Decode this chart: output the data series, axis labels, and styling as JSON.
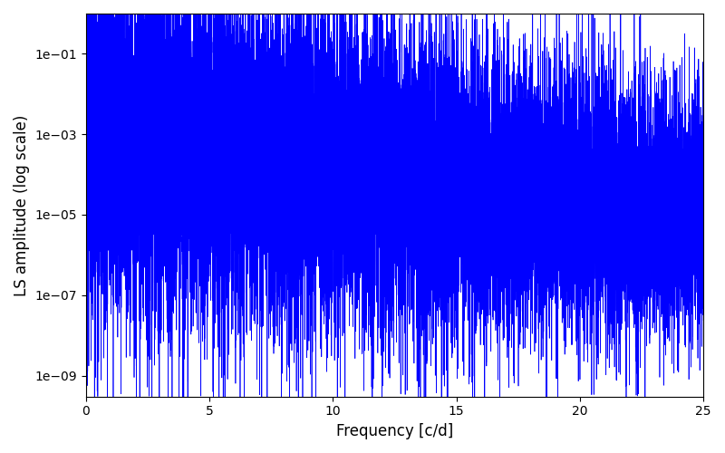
{
  "title": "",
  "xlabel": "Frequency [c/d]",
  "ylabel": "LS amplitude (log scale)",
  "xlim": [
    0,
    25
  ],
  "ylim": [
    3e-10,
    1.0
  ],
  "line_color": "#0000ff",
  "line_width": 0.5,
  "background_color": "#ffffff",
  "n_points": 15000,
  "freq_max": 25.0,
  "seed": 12345,
  "figsize": [
    8.0,
    5.0
  ],
  "dpi": 100
}
